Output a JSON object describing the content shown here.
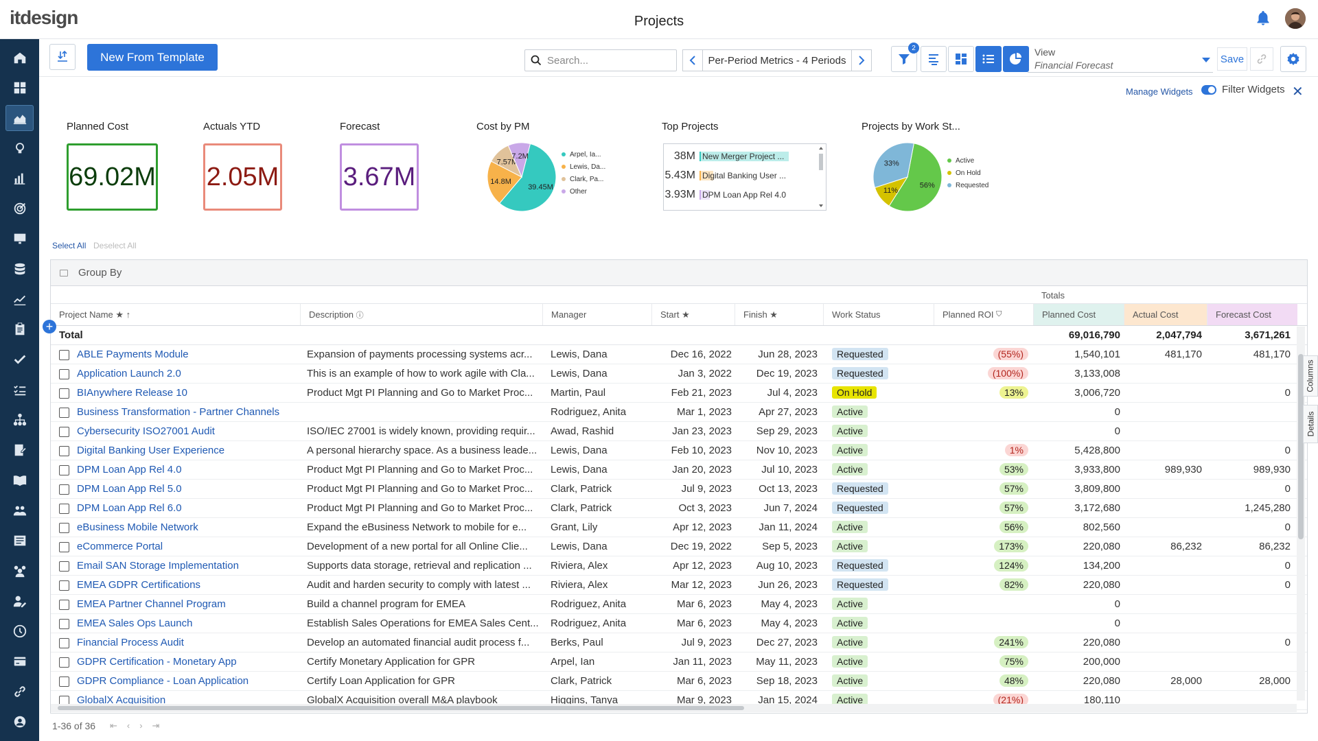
{
  "brand": {
    "name": "itdesign"
  },
  "page": {
    "title": "Projects"
  },
  "toolbar": {
    "new_from_template": "New From Template",
    "search_placeholder": "Search...",
    "period_label": "Per-Period Metrics - 4 Periods",
    "filter_badge": "2",
    "view_label": "View",
    "view_value": "Financial Forecast",
    "save": "Save"
  },
  "widgets": {
    "manage": "Manage Widgets",
    "filter": "Filter Widgets",
    "kpis": [
      {
        "title": "Planned Cost",
        "value": "69.02M",
        "color": "#2e9e2e",
        "text": "#0b3d0b"
      },
      {
        "title": "Actuals YTD",
        "value": "2.05M",
        "color": "#e98a7a",
        "text": "#8c1a12"
      },
      {
        "title": "Forecast",
        "value": "3.67M",
        "color": "#c08ee0",
        "text": "#5a1d7d"
      }
    ],
    "cost_by_pm": {
      "title": "Cost by PM",
      "slices": [
        {
          "label": "Arpel, Ia...",
          "value": 39.45,
          "display": "39.45M",
          "color": "#35c9bf"
        },
        {
          "label": "Lewis, Da...",
          "value": 14.8,
          "display": "14.8M",
          "color": "#f7b24a"
        },
        {
          "label": "Clark, Pa...",
          "value": 7.57,
          "display": "7.57M",
          "color": "#e0c29a"
        },
        {
          "label": "Other",
          "value": 7.2,
          "display": "7.2M",
          "color": "#c9a8e8"
        }
      ]
    },
    "top_projects": {
      "title": "Top Projects",
      "items": [
        {
          "value": "38M",
          "name": "New Merger Project ...",
          "bar": 1.0,
          "color": "#35c9bf"
        },
        {
          "value": "5.43M",
          "name": "Digital Banking User ...",
          "bar": 0.14,
          "color": "#f7b24a"
        },
        {
          "value": "3.93M",
          "name": "DPM Loan App Rel 4.0",
          "bar": 0.1,
          "color": "#c9a8e8"
        }
      ]
    },
    "work_status": {
      "title": "Projects by Work St...",
      "slices": [
        {
          "label": "Active",
          "value": 56,
          "display": "56%",
          "color": "#64c84a"
        },
        {
          "label": "On Hold",
          "value": 11,
          "display": "11%",
          "color": "#d4c200"
        },
        {
          "label": "Requested",
          "value": 33,
          "display": "33%",
          "color": "#7fb7d8"
        }
      ]
    }
  },
  "selection": {
    "select_all": "Select All",
    "deselect_all": "Deselect All"
  },
  "grid": {
    "group_by": "Group By",
    "totals_label": "Totals",
    "columns": {
      "name": "Project Name",
      "description": "Description",
      "manager": "Manager",
      "start": "Start",
      "finish": "Finish",
      "status": "Work Status",
      "roi": "Planned ROI",
      "planned": "Planned Cost",
      "actual": "Actual Cost",
      "forecast": "Forecast Cost"
    },
    "total": {
      "label": "Total",
      "planned": "69,016,790",
      "actual": "2,047,794",
      "forecast": "3,671,261"
    },
    "rows": [
      {
        "name": "ABLE Payments Module",
        "desc": "Expansion of payments processing systems acr...",
        "mgr": "Lewis, Dana",
        "start": "Dec 16, 2022",
        "finish": "Jun 28, 2023",
        "status": "Requested",
        "roi": "(55%)",
        "roi_t": "neg",
        "planned": "1,540,101",
        "actual": "481,170",
        "forecast": "481,170"
      },
      {
        "name": "Application Launch 2.0",
        "desc": "This is an example of how to work agile with Cla...",
        "mgr": "Lewis, Dana",
        "start": "Jan 3, 2022",
        "finish": "Dec 19, 2023",
        "status": "Requested",
        "roi": "(100%)",
        "roi_t": "neg",
        "planned": "3,133,008",
        "actual": "",
        "forecast": ""
      },
      {
        "name": "BIAnywhere Release 10",
        "desc": "Product Mgt PI Planning and Go to Market Proc...",
        "mgr": "Martin, Paul",
        "start": "Feb 21, 2023",
        "finish": "Jul 4, 2023",
        "status": "On Hold",
        "roi": "13%",
        "roi_t": "y",
        "planned": "3,006,720",
        "actual": "",
        "forecast": "0"
      },
      {
        "name": "Business Transformation - Partner Channels",
        "desc": "",
        "mgr": "Rodriguez, Anita",
        "start": "Mar 1, 2023",
        "finish": "Apr 27, 2023",
        "status": "Active",
        "roi": "",
        "roi_t": "",
        "planned": "0",
        "actual": "",
        "forecast": ""
      },
      {
        "name": "Cybersecurity ISO27001 Audit",
        "desc": "ISO/IEC 27001 is widely known, providing requir...",
        "mgr": "Awad, Rashid",
        "start": "Jan 23, 2023",
        "finish": "Sep 29, 2023",
        "status": "Active",
        "roi": "",
        "roi_t": "",
        "planned": "0",
        "actual": "",
        "forecast": ""
      },
      {
        "name": "Digital Banking User Experience",
        "desc": "A personal hierarchy space. As a business leade...",
        "mgr": "Lewis, Dana",
        "start": "Feb 10, 2023",
        "finish": "Nov 10, 2023",
        "status": "Active",
        "roi": "1%",
        "roi_t": "neg",
        "planned": "5,428,800",
        "actual": "",
        "forecast": "0"
      },
      {
        "name": "DPM Loan App Rel 4.0",
        "desc": "Product Mgt PI Planning and Go to Market Proc...",
        "mgr": "Lewis, Dana",
        "start": "Jan 20, 2023",
        "finish": "Jul 10, 2023",
        "status": "Active",
        "roi": "53%",
        "roi_t": "pos",
        "planned": "3,933,800",
        "actual": "989,930",
        "forecast": "989,930"
      },
      {
        "name": "DPM Loan App Rel 5.0",
        "desc": "Product Mgt PI Planning and Go to Market Proc...",
        "mgr": "Clark, Patrick",
        "start": "Jul 9, 2023",
        "finish": "Oct 13, 2023",
        "status": "Requested",
        "roi": "57%",
        "roi_t": "pos",
        "planned": "3,809,800",
        "actual": "",
        "forecast": "0"
      },
      {
        "name": "DPM Loan App Rel 6.0",
        "desc": "Product Mgt PI Planning and Go to Market Proc...",
        "mgr": "Clark, Patrick",
        "start": "Oct 3, 2023",
        "finish": "Jun 7, 2024",
        "status": "Requested",
        "roi": "57%",
        "roi_t": "pos",
        "planned": "3,172,680",
        "actual": "",
        "forecast": "1,245,280"
      },
      {
        "name": "eBusiness Mobile Network",
        "desc": "Expand the eBusiness Network to mobile for e...",
        "mgr": "Grant, Lily",
        "start": "Apr 12, 2023",
        "finish": "Jan 11, 2024",
        "status": "Active",
        "roi": "56%",
        "roi_t": "pos",
        "planned": "802,560",
        "actual": "",
        "forecast": "0"
      },
      {
        "name": "eCommerce Portal",
        "desc": "Development of a new portal for all Online Clie...",
        "mgr": "Lewis, Dana",
        "start": "Dec 19, 2022",
        "finish": "Sep 5, 2023",
        "status": "Active",
        "roi": "173%",
        "roi_t": "pos",
        "planned": "220,080",
        "actual": "86,232",
        "forecast": "86,232"
      },
      {
        "name": "Email SAN Storage Implementation",
        "desc": "Supports data storage, retrieval and replication ...",
        "mgr": "Riviera, Alex",
        "start": "Apr 12, 2023",
        "finish": "Aug 10, 2023",
        "status": "Requested",
        "roi": "124%",
        "roi_t": "pos",
        "planned": "134,200",
        "actual": "",
        "forecast": "0"
      },
      {
        "name": "EMEA GDPR Certifications",
        "desc": "Audit and harden security to comply with latest ...",
        "mgr": "Riviera, Alex",
        "start": "Mar 12, 2023",
        "finish": "Jun 26, 2023",
        "status": "Requested",
        "roi": "82%",
        "roi_t": "pos",
        "planned": "220,080",
        "actual": "",
        "forecast": "0"
      },
      {
        "name": "EMEA Partner Channel Program",
        "desc": "Build a channel program for EMEA",
        "mgr": "Rodriguez, Anita",
        "start": "Mar 6, 2023",
        "finish": "May 4, 2023",
        "status": "Active",
        "roi": "",
        "roi_t": "",
        "planned": "0",
        "actual": "",
        "forecast": ""
      },
      {
        "name": "EMEA Sales Ops Launch",
        "desc": "Establish Sales Operations for EMEA Sales Cent...",
        "mgr": "Rodriguez, Anita",
        "start": "Mar 6, 2023",
        "finish": "May 4, 2023",
        "status": "Active",
        "roi": "",
        "roi_t": "",
        "planned": "0",
        "actual": "",
        "forecast": ""
      },
      {
        "name": "Financial Process Audit",
        "desc": "Develop an automated financial audit process f...",
        "mgr": "Berks, Paul",
        "start": "Jul 9, 2023",
        "finish": "Dec 27, 2023",
        "status": "Active",
        "roi": "241%",
        "roi_t": "pos",
        "planned": "220,080",
        "actual": "",
        "forecast": "0"
      },
      {
        "name": "GDPR Certification - Monetary App",
        "desc": "Certify Monetary Application for GPR",
        "mgr": "Arpel, Ian",
        "start": "Jan 11, 2023",
        "finish": "May 11, 2023",
        "status": "Active",
        "roi": "75%",
        "roi_t": "pos",
        "planned": "200,000",
        "actual": "",
        "forecast": ""
      },
      {
        "name": "GDPR Compliance - Loan Application",
        "desc": "Certify Loan Application for GPR",
        "mgr": "Clark, Patrick",
        "start": "Mar 6, 2023",
        "finish": "Sep 18, 2023",
        "status": "Active",
        "roi": "48%",
        "roi_t": "pos",
        "planned": "220,080",
        "actual": "28,000",
        "forecast": "28,000"
      },
      {
        "name": "GlobalX Acquisition",
        "desc": "GlobalX Acquisition overall M&A playbook",
        "mgr": "Higgins, Tanya",
        "start": "Mar 9, 2023",
        "finish": "Jan 15, 2024",
        "status": "Active",
        "roi": "(21%)",
        "roi_t": "neg",
        "planned": "180,110",
        "actual": "",
        "forecast": ""
      }
    ]
  },
  "pager": {
    "range": "1-36 of 36"
  },
  "side_tabs": {
    "columns": "Columns",
    "details": "Details"
  }
}
